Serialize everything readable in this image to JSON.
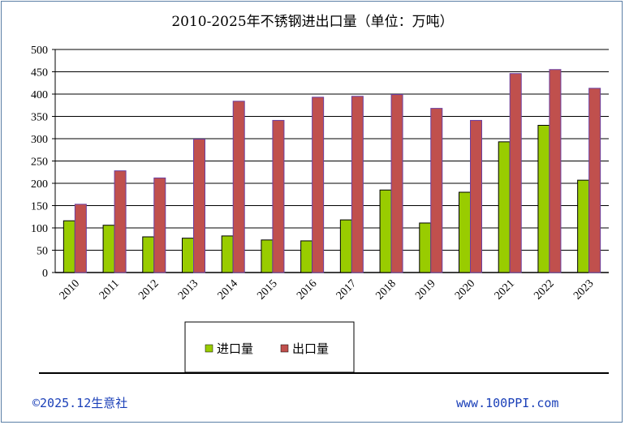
{
  "chart_data": {
    "type": "bar",
    "title": "2010-2025年不锈钢进出口量（单位：万吨）",
    "categories": [
      "2010",
      "2011",
      "2012",
      "2013",
      "2014",
      "2015",
      "2016",
      "2017",
      "2018",
      "2019",
      "2020",
      "2021",
      "2022",
      "2023"
    ],
    "series": [
      {
        "name": "进口量",
        "color": "#99cc00",
        "values": [
          116,
          106,
          80,
          77,
          82,
          73,
          71,
          118,
          185,
          111,
          180,
          293,
          330,
          207
        ]
      },
      {
        "name": "出口量",
        "color": "#c0504d",
        "values": [
          153,
          228,
          212,
          299,
          384,
          341,
          393,
          395,
          399,
          368,
          341,
          446,
          455,
          413
        ]
      }
    ],
    "ylim": [
      0,
      500
    ],
    "yticks": [
      0,
      50,
      100,
      150,
      200,
      250,
      300,
      350,
      400,
      450,
      500
    ],
    "grid": true,
    "legend_position": "bottom"
  },
  "footer": {
    "copyright": "©2025.12生意社",
    "website": "www.100PPI.com"
  }
}
